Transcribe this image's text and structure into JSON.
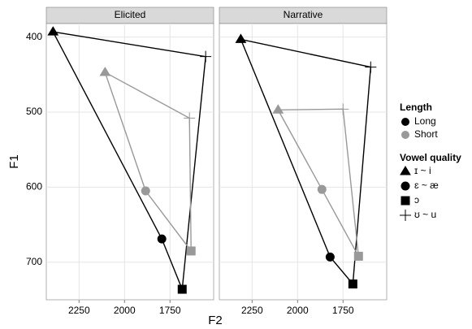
{
  "chart_data": {
    "type": "line",
    "x_label": "F2",
    "y_label": "F1",
    "xlim": [
      2430,
      1510
    ],
    "ylim": [
      382,
      750
    ],
    "log_scale": false,
    "xticks": [
      2250,
      2000,
      1750
    ],
    "yticks": [
      400,
      500,
      600,
      700
    ],
    "grid": true,
    "legend_position": "right",
    "length_title": "Length",
    "shape_title": "Vowel quality",
    "vowels": [
      "ɪ ~ i",
      "ɛ ~ æ",
      "ɔ",
      "ʊ ~ u"
    ],
    "facets": [
      {
        "title": "Elicited",
        "series": [
          {
            "name": "Long",
            "color": "#000000",
            "x": [
              2393,
              1795,
              1683,
              1554
            ],
            "values": [
              393,
              669,
              736,
              426
            ]
          },
          {
            "name": "Short",
            "color": "#999999",
            "x": [
              2107,
              1884,
              1634,
              1643
            ],
            "values": [
              447,
              605,
              685,
              508
            ]
          }
        ]
      },
      {
        "title": "Narrative",
        "series": [
          {
            "name": "Long",
            "color": "#000000",
            "x": [
              2312,
              1821,
              1696,
              1598
            ],
            "values": [
              403,
              693,
              729,
              440
            ]
          },
          {
            "name": "Short",
            "color": "#999999",
            "x": [
              2107,
              1866,
              1665,
              1750
            ],
            "values": [
              497,
              603,
              692,
              496
            ]
          }
        ]
      }
    ]
  }
}
